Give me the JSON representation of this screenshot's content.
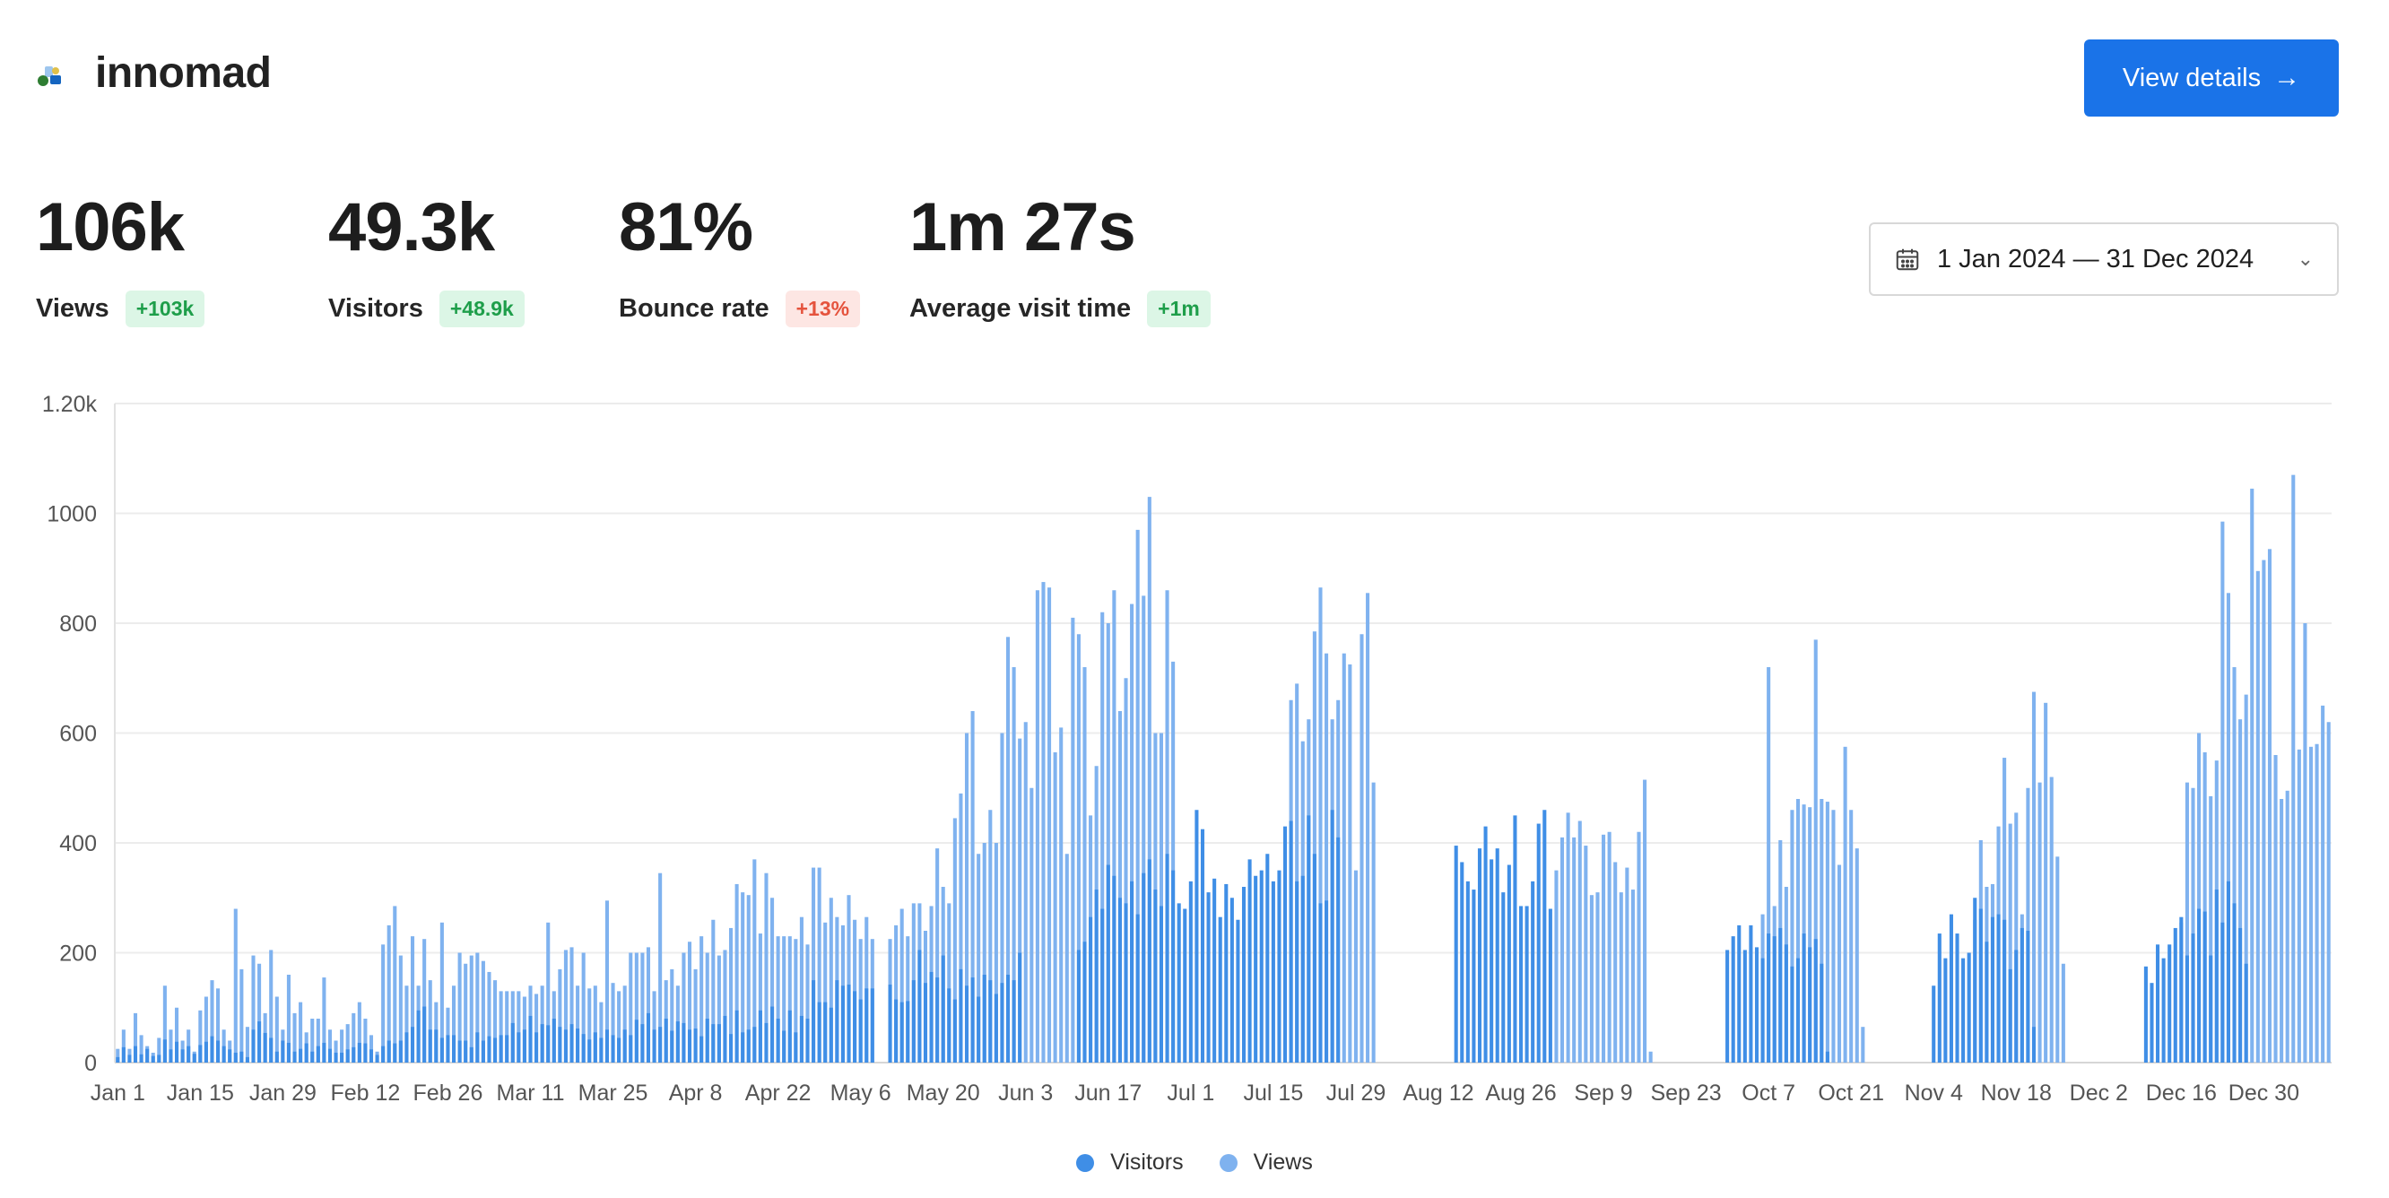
{
  "site": {
    "name": "innomad",
    "logo_icon": "innomad-logo-icon"
  },
  "header": {
    "view_details_label": "View details",
    "arrow_icon": "arrow-right-icon"
  },
  "stats": [
    {
      "value": "106k",
      "label": "Views",
      "change": "+103k",
      "trend": "up"
    },
    {
      "value": "49.3k",
      "label": "Visitors",
      "change": "+48.9k",
      "trend": "up"
    },
    {
      "value": "81%",
      "label": "Bounce rate",
      "change": "+13%",
      "trend": "down"
    },
    {
      "value": "1m 27s",
      "label": "Average visit time",
      "change": "+1m",
      "trend": "up"
    }
  ],
  "date_range": {
    "label": "1 Jan 2024 — 31 Dec 2024",
    "icon": "calendar-icon",
    "chevron_icon": "chevron-down-icon"
  },
  "colors": {
    "accent": "#1a73e8",
    "visitors": "#3f8ee6",
    "views": "#7fb2ef",
    "positive": "#1e9e4a",
    "negative": "#e5533d"
  },
  "chart_data": {
    "type": "bar",
    "stacked": "overlay",
    "x_start": "2024-01-01",
    "x_end": "2024-12-31",
    "ylim": [
      0,
      1200
    ],
    "yticks": [
      0,
      200,
      400,
      600,
      800,
      1000,
      1200
    ],
    "ytick_labels": [
      "0",
      "200",
      "400",
      "600",
      "800",
      "1000",
      "1.20k"
    ],
    "xtick_labels": [
      "Jan 1",
      "Jan 15",
      "Jan 29",
      "Feb 12",
      "Feb 26",
      "Mar 11",
      "Mar 25",
      "Apr 8",
      "Apr 22",
      "May 6",
      "May 20",
      "Jun 3",
      "Jun 17",
      "Jul 1",
      "Jul 15",
      "Jul 29",
      "Aug 12",
      "Aug 26",
      "Sep 9",
      "Sep 23",
      "Oct 7",
      "Oct 21",
      "Nov 4",
      "Nov 18",
      "Dec 2",
      "Dec 16",
      "Dec 30"
    ],
    "grid": true,
    "legend_position": "bottom",
    "series": [
      {
        "name": "Visitors",
        "values": [
          10,
          28,
          14,
          30,
          15,
          25,
          12,
          14,
          42,
          24,
          38,
          24,
          30,
          16,
          32,
          38,
          48,
          40,
          30,
          24,
          18,
          20,
          10,
          60,
          75,
          54,
          45,
          20,
          40,
          36,
          20,
          25,
          35,
          20,
          30,
          36,
          25,
          18,
          18,
          24,
          28,
          36,
          35,
          24,
          14,
          30,
          40,
          35,
          40,
          55,
          65,
          95,
          102,
          60,
          60,
          45,
          50,
          50,
          40,
          40,
          28,
          55,
          40,
          48,
          45,
          50,
          50,
          72,
          55,
          60,
          85,
          55,
          70,
          68,
          80,
          65,
          60,
          70,
          62,
          52,
          42,
          55,
          45,
          60,
          50,
          45,
          60,
          50,
          78,
          70,
          90,
          60,
          65,
          80,
          58,
          75,
          72,
          60,
          62,
          48,
          80,
          70,
          70,
          85,
          52,
          95,
          55,
          60,
          65,
          95,
          72,
          102,
          80,
          58,
          95,
          55,
          85,
          80,
          150,
          110,
          110,
          100,
          150,
          140,
          142,
          130,
          115,
          135,
          135,
          null,
          null,
          142,
          115,
          110,
          112,
          150,
          205,
          145,
          165,
          155,
          195,
          135,
          115,
          170,
          140,
          155,
          120,
          160,
          150,
          125,
          145,
          160,
          150,
          200,
          null,
          null,
          null,
          null,
          null,
          null,
          null,
          null,
          null,
          205,
          220,
          265,
          315,
          280,
          360,
          340,
          300,
          290,
          330,
          270,
          345,
          370,
          315,
          285,
          380,
          350,
          290,
          280,
          330,
          460,
          425,
          310,
          335,
          265,
          325,
          300,
          260,
          320,
          370,
          340,
          350,
          380,
          330,
          350,
          430,
          440,
          330,
          340,
          450,
          380,
          290,
          295,
          460,
          410,
          null,
          null,
          null,
          null,
          null,
          null,
          null,
          null,
          null,
          null,
          null,
          null,
          null,
          null,
          null,
          null,
          null,
          null,
          null,
          395,
          365,
          330,
          315,
          390,
          430,
          370,
          390,
          310,
          360,
          450,
          285,
          285,
          330,
          435,
          460,
          280,
          null,
          null,
          null,
          null,
          null,
          null,
          null,
          null,
          null,
          null,
          null,
          null,
          null,
          null,
          null,
          null,
          null,
          null,
          null,
          null,
          null,
          null,
          null,
          null,
          null,
          null,
          null,
          null,
          null,
          205,
          230,
          250,
          205,
          250,
          210,
          190,
          235,
          230,
          245,
          215,
          175,
          190,
          235,
          210,
          225,
          180,
          20,
          null,
          null,
          null,
          null,
          null,
          null,
          null,
          null,
          null,
          null,
          null,
          null,
          null,
          null,
          null,
          null,
          null,
          140,
          235,
          190,
          270,
          235,
          190,
          200,
          300,
          280,
          220,
          265,
          270,
          260,
          170,
          205,
          245,
          240,
          65,
          null,
          null,
          null,
          null,
          null,
          null,
          null,
          null,
          null,
          null,
          null,
          null,
          null,
          null,
          null,
          null,
          null,
          null,
          175,
          145,
          215,
          190,
          215,
          245,
          265,
          195,
          235,
          280,
          275,
          195,
          315,
          255,
          330,
          290,
          245,
          180,
          null,
          null,
          null,
          null,
          null,
          null,
          null,
          null,
          null,
          null,
          null,
          null,
          null,
          null,
          null,
          null,
          null,
          null,
          125,
          300,
          275,
          305,
          310,
          265,
          375,
          200,
          260,
          280,
          300,
          225,
          375,
          380,
          405,
          450,
          370,
          280,
          235,
          320,
          400,
          410,
          235,
          355,
          290,
          320,
          285
        ],
        "color": "#3f8ee6"
      },
      {
        "name": "Views",
        "values": [
          25,
          60,
          25,
          90,
          50,
          30,
          18,
          45,
          140,
          60,
          100,
          40,
          60,
          20,
          95,
          120,
          150,
          135,
          60,
          40,
          280,
          170,
          65,
          195,
          180,
          90,
          205,
          120,
          60,
          160,
          90,
          110,
          55,
          80,
          80,
          155,
          60,
          40,
          60,
          70,
          90,
          110,
          80,
          50,
          20,
          215,
          250,
          285,
          195,
          140,
          230,
          140,
          225,
          150,
          110,
          255,
          100,
          140,
          200,
          180,
          195,
          200,
          185,
          165,
          150,
          130,
          130,
          130,
          130,
          120,
          140,
          125,
          140,
          255,
          130,
          170,
          205,
          210,
          140,
          200,
          135,
          140,
          110,
          295,
          145,
          130,
          140,
          200,
          200,
          200,
          210,
          130,
          345,
          150,
          170,
          140,
          200,
          220,
          170,
          230,
          200,
          260,
          195,
          205,
          245,
          325,
          310,
          305,
          370,
          235,
          345,
          300,
          230,
          230,
          230,
          225,
          265,
          215,
          355,
          355,
          255,
          300,
          265,
          250,
          305,
          260,
          225,
          265,
          225,
          null,
          null,
          225,
          250,
          280,
          230,
          290,
          290,
          240,
          285,
          390,
          320,
          290,
          445,
          490,
          600,
          640,
          380,
          400,
          460,
          400,
          600,
          775,
          720,
          590,
          620,
          500,
          860,
          875,
          865,
          565,
          610,
          380,
          810,
          780,
          720,
          450,
          540,
          820,
          800,
          860,
          640,
          700,
          835,
          970,
          850,
          1030,
          600,
          600,
          860,
          730,
          null,
          null,
          null,
          null,
          null,
          null,
          null,
          null,
          null,
          null,
          null,
          null,
          null,
          null,
          null,
          null,
          null,
          null,
          null,
          660,
          690,
          585,
          625,
          785,
          865,
          745,
          625,
          660,
          745,
          725,
          350,
          780,
          855,
          510,
          null,
          null,
          null,
          null,
          null,
          null,
          null,
          null,
          null,
          null,
          null,
          null,
          null,
          null,
          null,
          null,
          null,
          null,
          null,
          null,
          null,
          null,
          null,
          null,
          null,
          null,
          null,
          null,
          null,
          null,
          350,
          410,
          455,
          410,
          440,
          395,
          305,
          310,
          415,
          420,
          365,
          310,
          355,
          315,
          420,
          515,
          20,
          null,
          null,
          null,
          null,
          null,
          null,
          null,
          null,
          null,
          null,
          null,
          null,
          null,
          null,
          null,
          null,
          null,
          null,
          270,
          720,
          285,
          405,
          320,
          460,
          480,
          470,
          465,
          770,
          480,
          475,
          460,
          360,
          575,
          460,
          390,
          65,
          null,
          null,
          null,
          null,
          null,
          null,
          null,
          null,
          null,
          null,
          null,
          null,
          null,
          null,
          null,
          null,
          null,
          null,
          260,
          405,
          320,
          325,
          430,
          555,
          435,
          455,
          270,
          500,
          675,
          510,
          655,
          520,
          375,
          180,
          null,
          null,
          null,
          null,
          null,
          null,
          null,
          null,
          null,
          null,
          null,
          null,
          null,
          null,
          null,
          null,
          null,
          null,
          null,
          255,
          510,
          500,
          600,
          565,
          485,
          550,
          985,
          855,
          720,
          625,
          670,
          1045,
          895,
          915,
          935,
          560,
          480,
          495,
          1070,
          570,
          800,
          575,
          580,
          650,
          620
        ],
        "color": "#7fb2ef"
      }
    ]
  },
  "legend": [
    {
      "label": "Visitors",
      "color": "#3f8ee6"
    },
    {
      "label": "Views",
      "color": "#7fb2ef"
    }
  ]
}
